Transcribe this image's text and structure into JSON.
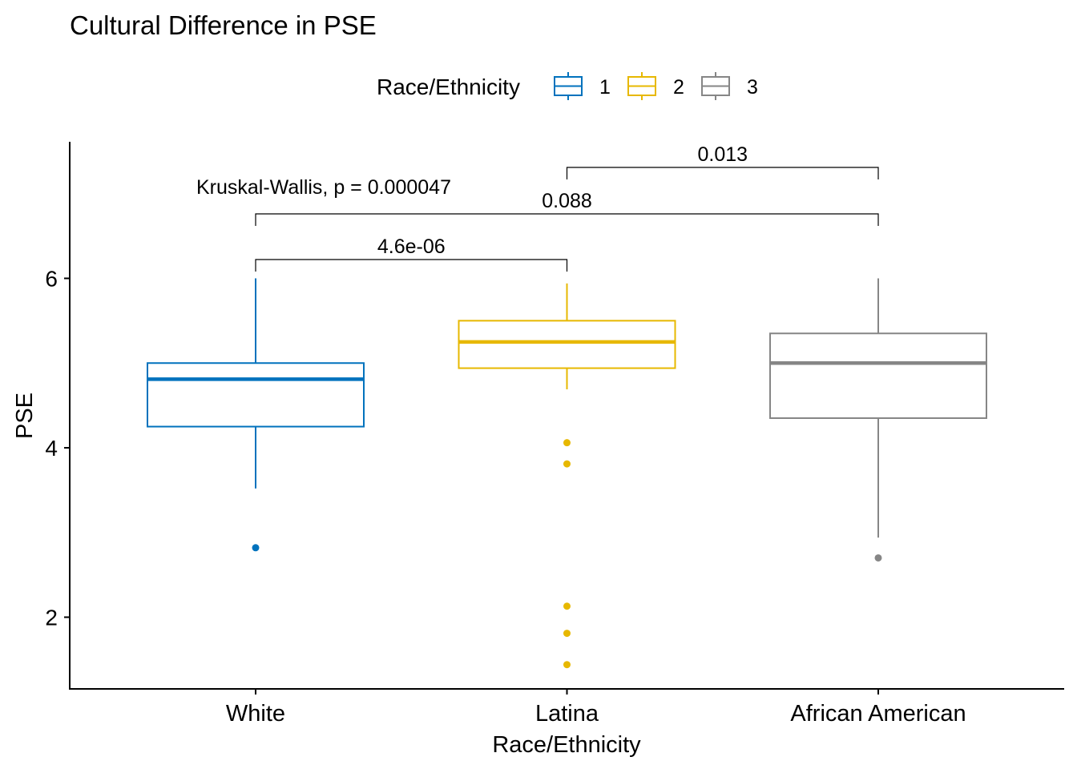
{
  "chart_data": {
    "type": "box",
    "title": "Cultural Difference in PSE",
    "xlabel": "Race/Ethnicity",
    "ylabel": "PSE",
    "categories": [
      "White",
      "Latina",
      "African American"
    ],
    "ylim": [
      1.2,
      7.7
    ],
    "yticks": [
      2,
      4,
      6
    ],
    "grid": false,
    "legend": {
      "title": "Race/Ethnicity",
      "position": "top",
      "entries": [
        "1",
        "2",
        "3"
      ]
    },
    "series": [
      {
        "legend_key": "1",
        "category": "White",
        "color": "#0072BD",
        "whisker_low": 3.52,
        "q1": 4.25,
        "median": 4.81,
        "q3": 5.0,
        "whisker_high": 6.0,
        "outliers": [
          2.82
        ]
      },
      {
        "legend_key": "2",
        "category": "Latina",
        "color": "#E7B800",
        "whisker_low": 4.69,
        "q1": 4.94,
        "median": 5.25,
        "q3": 5.5,
        "whisker_high": 5.94,
        "outliers": [
          4.06,
          3.81,
          2.13,
          1.81,
          1.44
        ]
      },
      {
        "legend_key": "3",
        "category": "African American",
        "color": "#868686",
        "whisker_low": 2.94,
        "q1": 4.35,
        "median": 5.0,
        "q3": 5.35,
        "whisker_high": 6.0,
        "outliers": [
          2.7
        ]
      }
    ],
    "annotations": {
      "overall_test": "Kruskal-Wallis, p = 0.000047",
      "comparisons": [
        {
          "from": "White",
          "to": "Latina",
          "label": "4.6e-06"
        },
        {
          "from": "White",
          "to": "African American",
          "label": "0.088"
        },
        {
          "from": "Latina",
          "to": "African American",
          "label": "0.013"
        }
      ]
    }
  }
}
